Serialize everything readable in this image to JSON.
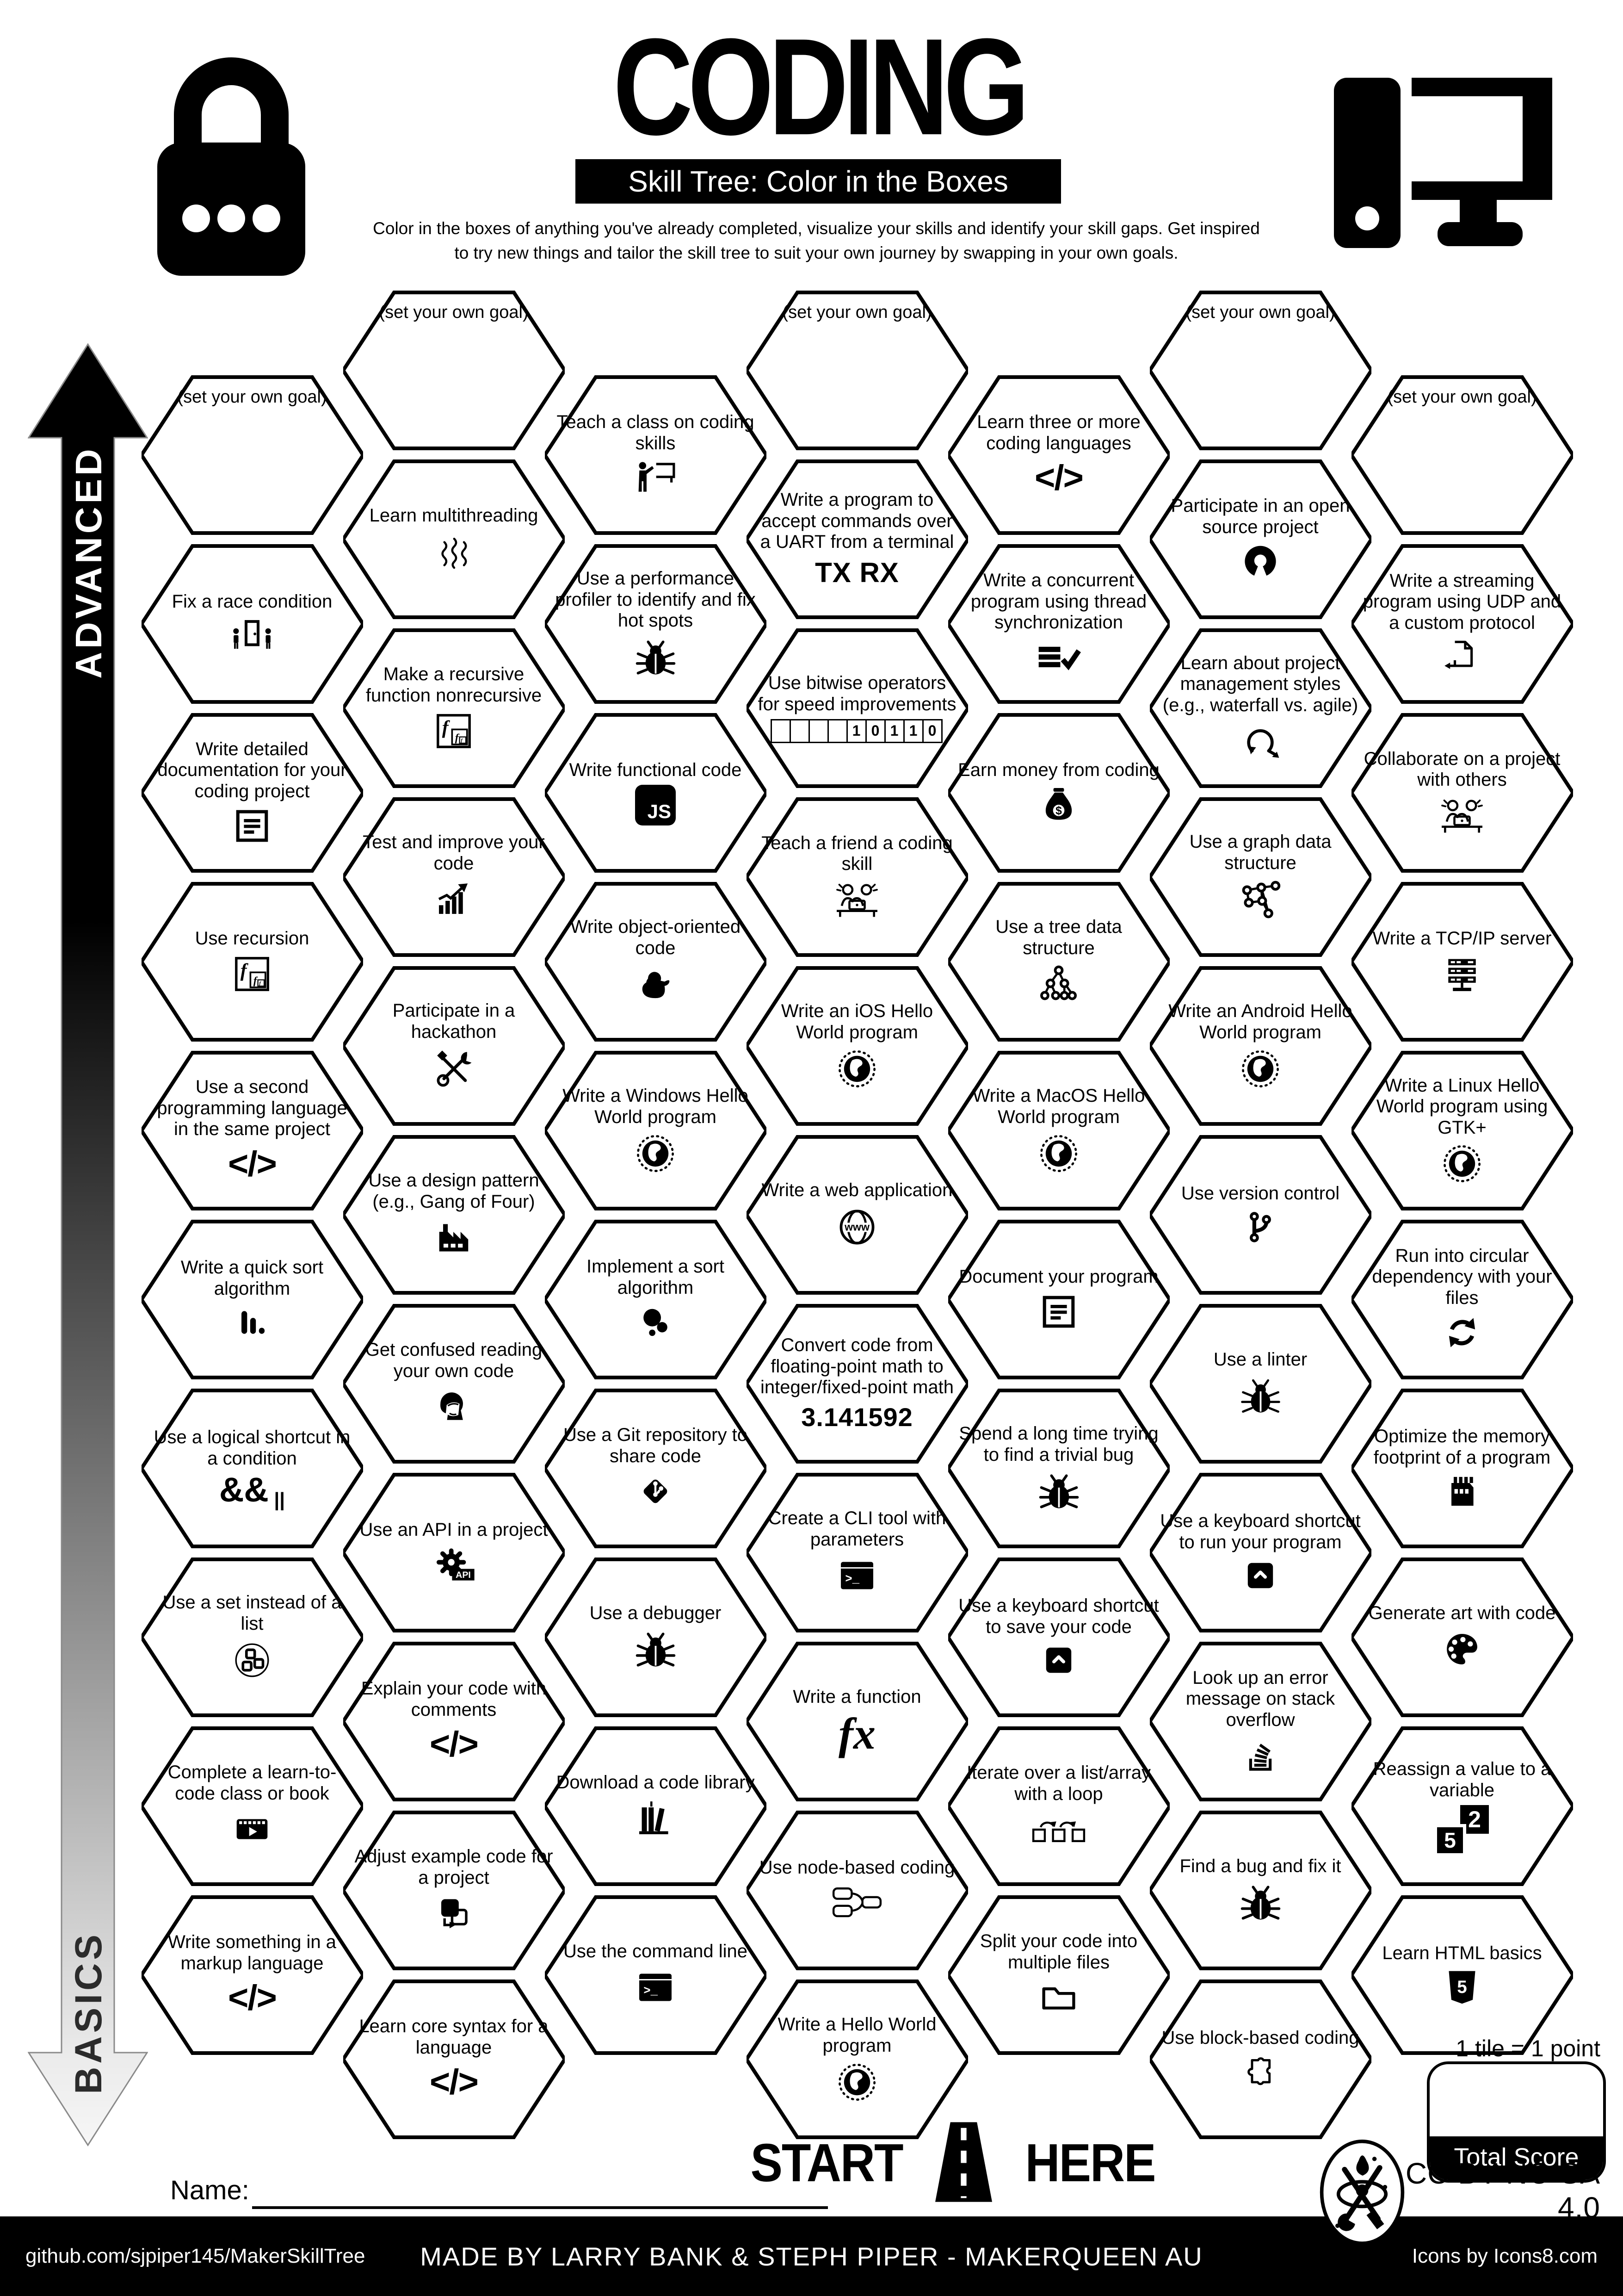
{
  "header": {
    "title": "CODING",
    "subtitle": "Skill Tree: Color in the Boxes",
    "description_line1": "Color in the boxes of anything you've already completed, visualize your skills and identify your skill gaps.  Get inspired",
    "description_line2": "to try new things and tailor the skill tree to suit your own journey by swapping in your own goals."
  },
  "axis": {
    "top_label": "ADVANCED",
    "bottom_label": "BASICS"
  },
  "columns": [
    {
      "hexes": [
        {
          "label": "(set your own goal)",
          "icon": null,
          "goal": true
        },
        {
          "label": "Fix a race condition",
          "icon": "race-door-icon"
        },
        {
          "label": "Write detailed documentation for your coding project",
          "icon": "document-icon"
        },
        {
          "label": "Use recursion",
          "icon": "recursion-icon"
        },
        {
          "label": "Use a second programming language in the same project",
          "icon": "code-icon"
        },
        {
          "label": "Write a quick sort algorithm",
          "icon": "sort-bars-icon"
        },
        {
          "label": "Use a logical shortcut in a condition",
          "icon": "logical-operators-icon"
        },
        {
          "label": "Use a set instead of a list",
          "icon": "set-icon"
        },
        {
          "label": "Complete a learn-to-code class or book",
          "icon": "video-class-icon"
        },
        {
          "label": "Write something in a markup language",
          "icon": "code-icon"
        }
      ]
    },
    {
      "hexes": [
        {
          "label": "(set your own goal)",
          "icon": null,
          "goal": true
        },
        {
          "label": "Learn multithreading",
          "icon": "threads-icon"
        },
        {
          "label": "Make a recursive function nonrecursive",
          "icon": "recursion-icon"
        },
        {
          "label": "Test and improve your code",
          "icon": "growth-chart-icon"
        },
        {
          "label": "Participate in a hackathon",
          "icon": "tools-icon"
        },
        {
          "label": "Use a design pattern (e.g., Gang of Four)",
          "icon": "factory-icon"
        },
        {
          "label": "Get confused reading your own code",
          "icon": "facepalm-icon"
        },
        {
          "label": "Use an API in a project",
          "icon": "api-gear-icon"
        },
        {
          "label": "Explain your code with comments",
          "icon": "code-icon"
        },
        {
          "label": "Adjust example code for a project",
          "icon": "adjust-code-icon"
        },
        {
          "label": "Learn core syntax for a language",
          "icon": "code-icon"
        }
      ]
    },
    {
      "hexes": [
        {
          "label": "Teach a class on coding skills",
          "icon": "teacher-icon"
        },
        {
          "label": "Use a performance profiler to identify and fix hot spots",
          "icon": "bug-icon"
        },
        {
          "label": "Write functional code",
          "icon": "js-badge-icon"
        },
        {
          "label": "Write object-oriented code",
          "icon": "duck-icon"
        },
        {
          "label": "Write a Windows Hello World program",
          "icon": "globe-icon"
        },
        {
          "label": "Implement a sort algorithm",
          "icon": "sort-circles-icon"
        },
        {
          "label": "Use a Git repository to share code",
          "icon": "git-repo-icon"
        },
        {
          "label": "Use a debugger",
          "icon": "bug-icon"
        },
        {
          "label": "Download a code library",
          "icon": "books-icon"
        },
        {
          "label": "Use the command line",
          "icon": "terminal-icon"
        }
      ]
    },
    {
      "hexes": [
        {
          "label": "(set your own goal)",
          "icon": null,
          "goal": true
        },
        {
          "label": "Write a program to accept commands over a UART from a terminal",
          "icon": "txrx-text-icon"
        },
        {
          "label": "Use bitwise operators for speed improvements",
          "icon": "binary-boxes-icon"
        },
        {
          "label": "Teach a friend a coding skill",
          "icon": "pair-coding-icon"
        },
        {
          "label": "Write an iOS Hello World program",
          "icon": "globe-icon"
        },
        {
          "label": "Write a web application",
          "icon": "www-globe-icon"
        },
        {
          "label": "Convert code from floating-point math to integer/fixed-point math",
          "icon": "pi-text-icon"
        },
        {
          "label": "Create a CLI tool with parameters",
          "icon": "terminal-icon"
        },
        {
          "label": "Write a function",
          "icon": "fx-text-icon"
        },
        {
          "label": "Use node-based coding",
          "icon": "nodes-icon"
        },
        {
          "label": "Write a Hello World program",
          "icon": "globe-icon"
        }
      ]
    },
    {
      "hexes": [
        {
          "label": "Learn three or more coding languages",
          "icon": "code-icon"
        },
        {
          "label": "Write a concurrent program using thread synchronization",
          "icon": "sync-check-icon"
        },
        {
          "label": "Earn money from coding",
          "icon": "money-bag-icon"
        },
        {
          "label": "Use a tree data structure",
          "icon": "tree-icon"
        },
        {
          "label": "Write a MacOS Hello World program",
          "icon": "globe-icon"
        },
        {
          "label": "Document your program",
          "icon": "document-icon"
        },
        {
          "label": "Spend a long time trying to find a trivial bug",
          "icon": "bug-icon"
        },
        {
          "label": "Use a keyboard shortcut to save your code",
          "icon": "key-caret-icon"
        },
        {
          "label": "Iterate over a list/array with a loop",
          "icon": "loop-iteration-icon"
        },
        {
          "label": "Split your code into multiple files",
          "icon": "folder-icon"
        }
      ]
    },
    {
      "hexes": [
        {
          "label": "(set your own goal)",
          "icon": null,
          "goal": true
        },
        {
          "label": "Participate in an open source project",
          "icon": "open-source-icon"
        },
        {
          "label": "Learn about project management styles (e.g., waterfall vs. agile)",
          "icon": "agile-loop-icon"
        },
        {
          "label": "Use a graph data structure",
          "icon": "graph-icon"
        },
        {
          "label": "Write an Android Hello World program",
          "icon": "globe-icon"
        },
        {
          "label": "Use version control",
          "icon": "git-branch-icon"
        },
        {
          "label": "Use a linter",
          "icon": "bug-outline-icon"
        },
        {
          "label": "Use a keyboard shortcut to run your program",
          "icon": "key-caret-icon"
        },
        {
          "label": "Look up an error message on stack overflow",
          "icon": "stack-overflow-icon"
        },
        {
          "label": "Find a bug and fix it",
          "icon": "bug-icon"
        },
        {
          "label": "Use block-based coding",
          "icon": "puzzle-icon"
        }
      ]
    },
    {
      "hexes": [
        {
          "label": "(set your own goal)",
          "icon": null,
          "goal": true
        },
        {
          "label": "Write a streaming program using UDP and a custom protocol",
          "icon": "streaming-doc-icon"
        },
        {
          "label": "Collaborate on a project with others",
          "icon": "collaboration-icon"
        },
        {
          "label": "Write a TCP/IP server",
          "icon": "server-icon"
        },
        {
          "label": "Write a Linux Hello World program using GTK+",
          "icon": "globe-icon"
        },
        {
          "label": "Run into circular dependency with your files",
          "icon": "circular-arrows-icon"
        },
        {
          "label": "Optimize the memory footprint of a program",
          "icon": "memory-chip-icon"
        },
        {
          "label": "Generate art with code",
          "icon": "palette-icon"
        },
        {
          "label": "Reassign a value to a variable",
          "icon": "reassign-values-icon"
        },
        {
          "label": "Learn HTML basics",
          "icon": "html5-icon"
        }
      ]
    }
  ],
  "start_marker": {
    "left": "START",
    "right": "HERE"
  },
  "name_field": {
    "label": "Name:"
  },
  "score": {
    "tile_note": "1 tile = 1 point",
    "total_label": "Total Score"
  },
  "license": "CC BY-NC-SA 4.0",
  "footer": {
    "left": "github.com/sjpiper145/MakerSkillTree",
    "center": "MADE BY LARRY BANK & STEPH PIPER  -  MAKERQUEEN AU",
    "right": "Icons by Icons8.com"
  },
  "colors": {
    "ink": "#000000",
    "paper": "#ffffff"
  }
}
